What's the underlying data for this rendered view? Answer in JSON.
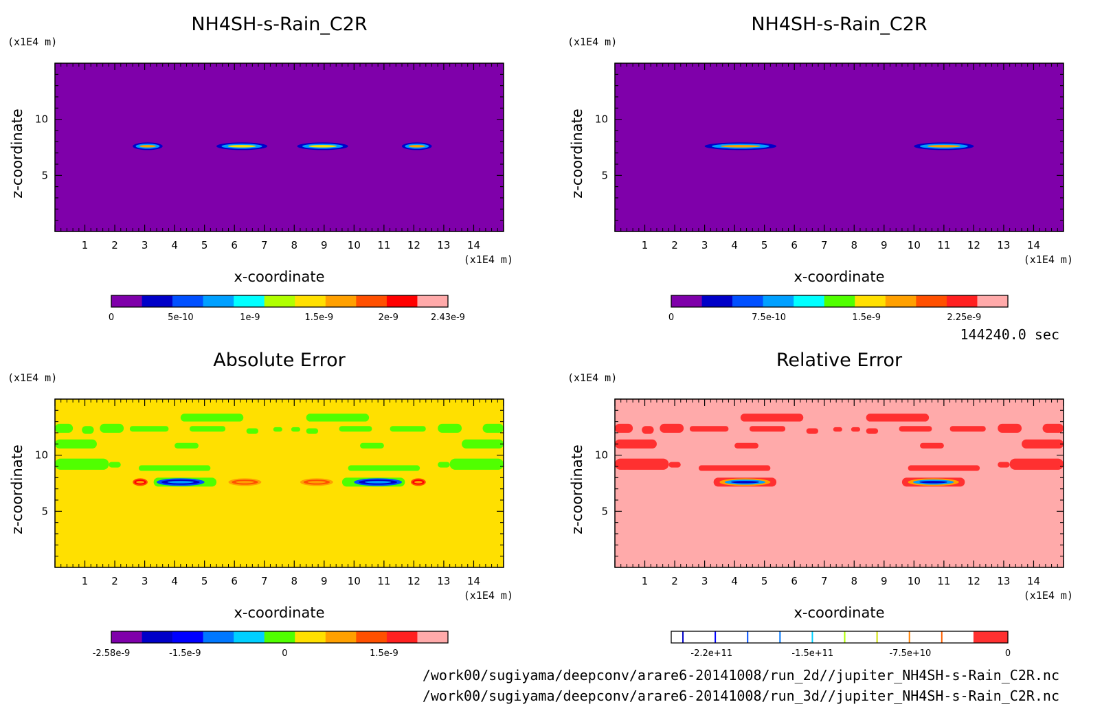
{
  "time_label": "144240.0 sec",
  "footer": {
    "line1": "/work00/sugiyama/deepconv/arare6-20141008/run_2d//jupiter_NH4SH-s-Rain_C2R.nc",
    "line2": "/work00/sugiyama/deepconv/arare6-20141008/run_3d//jupiter_NH4SH-s-Rain_C2R.nc"
  },
  "chart_data": [
    {
      "type": "heatmap",
      "id": "p1",
      "title": "NH4SH-s-Rain_C2R",
      "xlabel": "x-coordinate",
      "ylabel": "z-coordinate",
      "xunit": "(x1E4 m)",
      "yunit": "(x1E4 m)",
      "xticks": [
        "1",
        "2",
        "3",
        "4",
        "5",
        "6",
        "7",
        "8",
        "9",
        "10",
        "11",
        "12",
        "13",
        "14"
      ],
      "yticks": [
        "5",
        "10"
      ],
      "xlim": [
        0,
        15
      ],
      "ylim": [
        0,
        15
      ],
      "background_color": "#7f00aa",
      "features": [
        {
          "x0": 2.6,
          "x1": 3.6,
          "z": 7.6,
          "colors": [
            "#0000c8",
            "#00a0ff",
            "#ffa000"
          ]
        },
        {
          "x0": 5.4,
          "x1": 7.1,
          "z": 7.6,
          "colors": [
            "#0000c8",
            "#00a0ff",
            "#ffe000"
          ]
        },
        {
          "x0": 8.1,
          "x1": 9.8,
          "z": 7.6,
          "colors": [
            "#0000c8",
            "#00a0ff",
            "#ffe000"
          ]
        },
        {
          "x0": 11.6,
          "x1": 12.6,
          "z": 7.6,
          "colors": [
            "#0000c8",
            "#00a0ff",
            "#ffa000"
          ]
        }
      ],
      "colorbar": {
        "colors": [
          "#7f00aa",
          "#0000c8",
          "#0050ff",
          "#00a0ff",
          "#00ffff",
          "#b0ff00",
          "#ffe000",
          "#ffa000",
          "#ff5000",
          "#ff0000",
          "#ffaaaa"
        ],
        "labels": [
          "0",
          "5e-10",
          "1e-9",
          "1.5e-9",
          "2e-9",
          "2.43e-9"
        ],
        "label_positions": [
          0,
          0.206,
          0.412,
          0.617,
          0.823,
          1.0
        ]
      }
    },
    {
      "type": "heatmap",
      "id": "p2",
      "title": "NH4SH-s-Rain_C2R",
      "xlabel": "x-coordinate",
      "ylabel": "z-coordinate",
      "xunit": "(x1E4 m)",
      "yunit": "(x1E4 m)",
      "xticks": [
        "1",
        "2",
        "3",
        "4",
        "5",
        "6",
        "7",
        "8",
        "9",
        "10",
        "11",
        "12",
        "13",
        "14"
      ],
      "yticks": [
        "5",
        "10"
      ],
      "xlim": [
        0,
        15
      ],
      "ylim": [
        0,
        15
      ],
      "background_color": "#7f00aa",
      "features": [
        {
          "x0": 3.0,
          "x1": 5.4,
          "z": 7.6,
          "colors": [
            "#0000c8",
            "#00a0ff",
            "#ffa000"
          ]
        },
        {
          "x0": 10.0,
          "x1": 12.0,
          "z": 7.6,
          "colors": [
            "#0000c8",
            "#00a0ff",
            "#ffa000"
          ]
        }
      ],
      "colorbar": {
        "colors": [
          "#7f00aa",
          "#0000c8",
          "#0050ff",
          "#00a0ff",
          "#00ffff",
          "#50ff00",
          "#ffe000",
          "#ffa000",
          "#ff5000",
          "#ff2020",
          "#ffaaaa"
        ],
        "labels": [
          "0",
          "7.5e-10",
          "1.5e-9",
          "2.25e-9"
        ],
        "label_positions": [
          0,
          0.29,
          0.58,
          0.87
        ]
      }
    },
    {
      "type": "heatmap",
      "id": "p3",
      "title": "Absolute Error",
      "xlabel": "x-coordinate",
      "ylabel": "z-coordinate",
      "xunit": "(x1E4 m)",
      "yunit": "(x1E4 m)",
      "xticks": [
        "1",
        "2",
        "3",
        "4",
        "5",
        "6",
        "7",
        "8",
        "9",
        "10",
        "11",
        "12",
        "13",
        "14"
      ],
      "yticks": [
        "5",
        "10"
      ],
      "xlim": [
        0,
        15
      ],
      "ylim": [
        0,
        15
      ],
      "background_color": "#ffe000",
      "region_color": "#50ff00",
      "regions": [
        {
          "x0": 4.2,
          "x1": 6.3,
          "z0": 13.0,
          "z1": 13.7
        },
        {
          "x0": 8.4,
          "x1": 10.5,
          "z0": 13.0,
          "z1": 13.7
        },
        {
          "x0": 0.0,
          "x1": 0.6,
          "z0": 12.0,
          "z1": 12.8
        },
        {
          "x0": 0.9,
          "x1": 1.3,
          "z0": 11.9,
          "z1": 12.6
        },
        {
          "x0": 1.5,
          "x1": 2.3,
          "z0": 12.0,
          "z1": 12.8
        },
        {
          "x0": 2.5,
          "x1": 3.8,
          "z0": 12.1,
          "z1": 12.6
        },
        {
          "x0": 4.5,
          "x1": 5.7,
          "z0": 12.1,
          "z1": 12.6
        },
        {
          "x0": 6.4,
          "x1": 6.8,
          "z0": 11.9,
          "z1": 12.4
        },
        {
          "x0": 7.3,
          "x1": 7.6,
          "z0": 12.1,
          "z1": 12.5
        },
        {
          "x0": 7.9,
          "x1": 8.2,
          "z0": 12.1,
          "z1": 12.5
        },
        {
          "x0": 8.4,
          "x1": 8.8,
          "z0": 11.9,
          "z1": 12.4
        },
        {
          "x0": 9.5,
          "x1": 10.6,
          "z0": 12.1,
          "z1": 12.6
        },
        {
          "x0": 11.2,
          "x1": 12.4,
          "z0": 12.1,
          "z1": 12.6
        },
        {
          "x0": 12.8,
          "x1": 13.6,
          "z0": 12.0,
          "z1": 12.8
        },
        {
          "x0": 14.3,
          "x1": 15.0,
          "z0": 12.0,
          "z1": 12.8
        },
        {
          "x0": 0.0,
          "x1": 1.4,
          "z0": 10.6,
          "z1": 11.4
        },
        {
          "x0": 4.0,
          "x1": 4.8,
          "z0": 10.6,
          "z1": 11.1
        },
        {
          "x0": 10.2,
          "x1": 11.0,
          "z0": 10.6,
          "z1": 11.1
        },
        {
          "x0": 13.6,
          "x1": 15.0,
          "z0": 10.6,
          "z1": 11.4
        },
        {
          "x0": 0.0,
          "x1": 1.8,
          "z0": 8.7,
          "z1": 9.7
        },
        {
          "x0": 1.8,
          "x1": 2.2,
          "z0": 8.9,
          "z1": 9.4
        },
        {
          "x0": 2.8,
          "x1": 5.2,
          "z0": 8.6,
          "z1": 9.1
        },
        {
          "x0": 9.8,
          "x1": 12.2,
          "z0": 8.6,
          "z1": 9.1
        },
        {
          "x0": 12.8,
          "x1": 13.2,
          "z0": 8.9,
          "z1": 9.4
        },
        {
          "x0": 13.2,
          "x1": 15.0,
          "z0": 8.7,
          "z1": 9.7
        },
        {
          "x0": 3.3,
          "x1": 5.4,
          "z0": 7.2,
          "z1": 8.0
        },
        {
          "x0": 9.6,
          "x1": 11.7,
          "z0": 7.2,
          "z1": 8.0
        }
      ],
      "features": [
        {
          "x0": 3.4,
          "x1": 5.0,
          "z": 7.6,
          "colors": [
            "#0050ff",
            "#0000c8",
            "#00a0ff"
          ]
        },
        {
          "x0": 10.0,
          "x1": 11.6,
          "z": 7.6,
          "colors": [
            "#0050ff",
            "#0000c8",
            "#00a0ff"
          ]
        },
        {
          "x0": 2.6,
          "x1": 3.1,
          "z": 7.6,
          "colors": [
            "#ff5000",
            "#ff0000",
            "#ffa000"
          ]
        },
        {
          "x0": 5.8,
          "x1": 6.9,
          "z": 7.6,
          "colors": [
            "#ffa000",
            "#ff5000",
            "#ffa000"
          ]
        },
        {
          "x0": 8.2,
          "x1": 9.3,
          "z": 7.6,
          "colors": [
            "#ffa000",
            "#ff5000",
            "#ffa000"
          ]
        },
        {
          "x0": 11.9,
          "x1": 12.4,
          "z": 7.6,
          "colors": [
            "#ff5000",
            "#ff0000",
            "#ffa000"
          ]
        }
      ],
      "colorbar": {
        "colors": [
          "#7f00aa",
          "#0000c8",
          "#0000ff",
          "#0078ff",
          "#00d0ff",
          "#50ff00",
          "#ffe000",
          "#ffa000",
          "#ff5000",
          "#ff2020",
          "#ffaaaa"
        ],
        "labels": [
          "-2.58e-9",
          "-1.5e-9",
          "0",
          "1.5e-9"
        ],
        "label_positions": [
          0.0,
          0.219,
          0.515,
          0.81
        ]
      }
    },
    {
      "type": "heatmap",
      "id": "p4",
      "title": "Relative Error",
      "xlabel": "x-coordinate",
      "ylabel": "z-coordinate",
      "xunit": "(x1E4 m)",
      "yunit": "(x1E4 m)",
      "xticks": [
        "1",
        "2",
        "3",
        "4",
        "5",
        "6",
        "7",
        "8",
        "9",
        "10",
        "11",
        "12",
        "13",
        "14"
      ],
      "yticks": [
        "5",
        "10"
      ],
      "xlim": [
        0,
        15
      ],
      "ylim": [
        0,
        15
      ],
      "background_color": "#ffaaaa",
      "region_color": "#ff3030",
      "regions": [
        {
          "x0": 4.2,
          "x1": 6.3,
          "z0": 13.0,
          "z1": 13.7
        },
        {
          "x0": 8.4,
          "x1": 10.5,
          "z0": 13.0,
          "z1": 13.7
        },
        {
          "x0": 0.0,
          "x1": 0.6,
          "z0": 12.0,
          "z1": 12.8
        },
        {
          "x0": 0.9,
          "x1": 1.3,
          "z0": 11.9,
          "z1": 12.6
        },
        {
          "x0": 1.5,
          "x1": 2.3,
          "z0": 12.0,
          "z1": 12.8
        },
        {
          "x0": 2.5,
          "x1": 3.8,
          "z0": 12.1,
          "z1": 12.6
        },
        {
          "x0": 4.5,
          "x1": 5.7,
          "z0": 12.1,
          "z1": 12.6
        },
        {
          "x0": 6.4,
          "x1": 6.8,
          "z0": 11.9,
          "z1": 12.4
        },
        {
          "x0": 7.3,
          "x1": 7.6,
          "z0": 12.1,
          "z1": 12.5
        },
        {
          "x0": 7.9,
          "x1": 8.2,
          "z0": 12.1,
          "z1": 12.5
        },
        {
          "x0": 8.4,
          "x1": 8.8,
          "z0": 11.9,
          "z1": 12.4
        },
        {
          "x0": 9.5,
          "x1": 10.6,
          "z0": 12.1,
          "z1": 12.6
        },
        {
          "x0": 11.2,
          "x1": 12.4,
          "z0": 12.1,
          "z1": 12.6
        },
        {
          "x0": 12.8,
          "x1": 13.6,
          "z0": 12.0,
          "z1": 12.8
        },
        {
          "x0": 14.3,
          "x1": 15.0,
          "z0": 12.0,
          "z1": 12.8
        },
        {
          "x0": 0.0,
          "x1": 1.4,
          "z0": 10.6,
          "z1": 11.4
        },
        {
          "x0": 4.0,
          "x1": 4.8,
          "z0": 10.6,
          "z1": 11.1
        },
        {
          "x0": 10.2,
          "x1": 11.0,
          "z0": 10.6,
          "z1": 11.1
        },
        {
          "x0": 13.6,
          "x1": 15.0,
          "z0": 10.6,
          "z1": 11.4
        },
        {
          "x0": 0.0,
          "x1": 1.8,
          "z0": 8.7,
          "z1": 9.7
        },
        {
          "x0": 1.8,
          "x1": 2.2,
          "z0": 8.9,
          "z1": 9.4
        },
        {
          "x0": 2.8,
          "x1": 5.2,
          "z0": 8.6,
          "z1": 9.1
        },
        {
          "x0": 9.8,
          "x1": 12.2,
          "z0": 8.6,
          "z1": 9.1
        },
        {
          "x0": 12.8,
          "x1": 13.2,
          "z0": 8.9,
          "z1": 9.4
        },
        {
          "x0": 13.2,
          "x1": 15.0,
          "z0": 8.7,
          "z1": 9.7
        },
        {
          "x0": 3.3,
          "x1": 5.4,
          "z0": 7.2,
          "z1": 8.0
        },
        {
          "x0": 9.6,
          "x1": 11.7,
          "z0": 7.2,
          "z1": 8.0
        }
      ],
      "features": [
        {
          "x0": 3.5,
          "x1": 5.2,
          "z": 7.6,
          "colors": [
            "#ffa000",
            "#00a0ff",
            "#0000c8"
          ]
        },
        {
          "x0": 9.8,
          "x1": 11.5,
          "z": 7.6,
          "colors": [
            "#ffa000",
            "#00a0ff",
            "#0000c8"
          ]
        }
      ],
      "colorbar": {
        "colors": [
          "#ffffff",
          "#0000c8",
          "#ffffff",
          "#0000ff",
          "#ffffff",
          "#0050ff",
          "#ffffff",
          "#0078ff",
          "#ffffff",
          "#00d0ff",
          "#ffffff",
          "#b0ff00",
          "#ffffff",
          "#d0e000",
          "#ffffff",
          "#ff8000",
          "#ffffff",
          "#ff6000",
          "#ffffff",
          "#ff3030"
        ],
        "colors_weights": [
          3.2,
          0.4,
          9.0,
          0.4,
          9.0,
          0.4,
          9.0,
          0.4,
          9.0,
          0.4,
          9.0,
          0.4,
          9.0,
          0.4,
          9.0,
          0.4,
          9.0,
          0.4,
          9.0,
          10.0
        ],
        "labels": [
          "-2.2e+11",
          "-1.5e+11",
          "-7.5e+10",
          "0"
        ],
        "label_positions": [
          0.12,
          0.42,
          0.71,
          1.0
        ]
      }
    }
  ]
}
